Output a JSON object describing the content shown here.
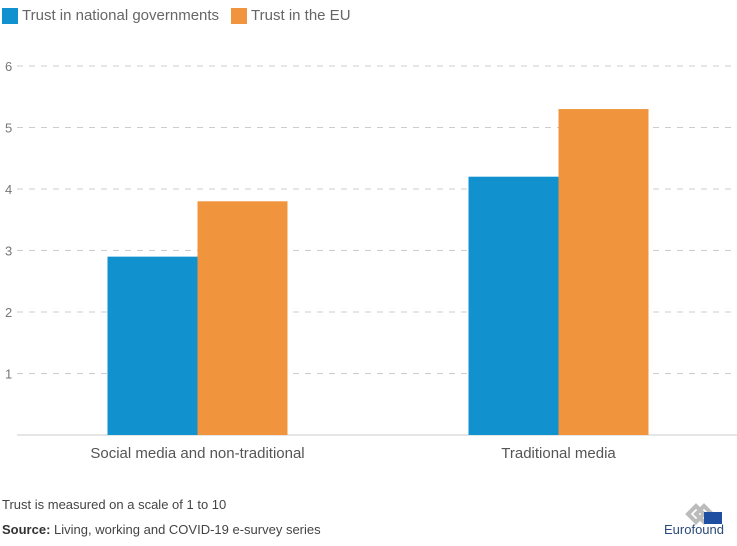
{
  "chart_data": {
    "type": "bar",
    "categories": [
      "Social media and non-traditional",
      "Traditional media"
    ],
    "series": [
      {
        "name": "Trust in national governments",
        "values": [
          2.9,
          4.2
        ],
        "color": "#1192cf"
      },
      {
        "name": "Trust in the EU",
        "values": [
          3.8,
          5.3
        ],
        "color": "#f0953e"
      }
    ],
    "ylim": [
      0,
      6
    ],
    "yticks": [
      1,
      2,
      3,
      4,
      5,
      6
    ],
    "grid": true,
    "legend": "top-left"
  },
  "footer": {
    "note": "Trust is measured on a scale of 1 to 10",
    "source_label": "Source:",
    "source_text": " Living, working and COVID-19 e-survey series",
    "logo": "Eurofound"
  }
}
